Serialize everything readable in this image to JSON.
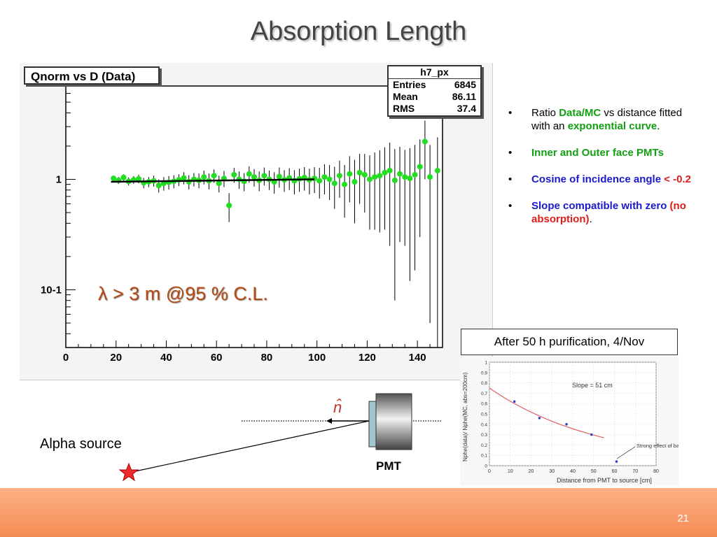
{
  "slide": {
    "title": "Absorption Length",
    "page_number": "21"
  },
  "main_plot": {
    "hist_title": "Qnorm vs D (Data)",
    "stats": {
      "name": "h7_px",
      "rows": [
        {
          "label": "Entries",
          "value": "6845"
        },
        {
          "label": "Mean",
          "value": "86.11"
        },
        {
          "label": "RMS",
          "value": "37.4"
        }
      ]
    },
    "annotation_symbol": "λ",
    "annotation_text": " > 3 m @95 % C.L.",
    "colors": {
      "points": "#22dd22",
      "fit": "#000000",
      "annotation": "#b84a12"
    }
  },
  "bullets": [
    {
      "parts": [
        {
          "t": "Ratio ",
          "c": ""
        },
        {
          "t": "Data/MC",
          "c": "green"
        },
        {
          "t": " vs distance fitted with an ",
          "c": ""
        },
        {
          "t": "exponential curve",
          "c": "green"
        },
        {
          "t": ".",
          "c": ""
        }
      ]
    },
    {
      "parts": [
        {
          "t": "Inner and Outer face PMTs",
          "c": "green"
        }
      ]
    },
    {
      "parts": [
        {
          "t": "Cosine of  incidence angle ",
          "c": "blue"
        },
        {
          "t": "< -0.2",
          "c": "red"
        }
      ]
    },
    {
      "parts": [
        {
          "t": "Slope compatible with zero ",
          "c": "blue"
        },
        {
          "t": "(no absorption)",
          "c": "red"
        },
        {
          "t": ".",
          "c": ""
        }
      ]
    }
  ],
  "inset": {
    "caption": "After 50 h purification, 4/Nov",
    "slope_label": "Slope = 51 cm",
    "note": "Strong effect of baseline",
    "xlabel": "Distance from PMT to source [cm]",
    "ylabel": "Nphe(data)/ Nphe(MC, abs=200cm)"
  },
  "diagram": {
    "alpha_label": "Alpha source",
    "pmt_label": "PMT",
    "normal_symbol": "n̂"
  },
  "chart_data": [
    {
      "type": "scatter",
      "title": "Qnorm vs D (Data)",
      "xlabel": "",
      "ylabel": "",
      "xlim": [
        0,
        150
      ],
      "ylim": [
        0.03,
        7
      ],
      "yscale": "log",
      "x_ticks": [
        0,
        20,
        40,
        60,
        80,
        100,
        120,
        140
      ],
      "y_ticks": [
        {
          "v": 1,
          "label": "1"
        },
        {
          "v": 0.1,
          "label": "10-1"
        }
      ],
      "x": [
        19,
        21,
        23,
        25,
        27,
        29,
        31,
        33,
        35,
        37,
        39,
        41,
        43,
        45,
        47,
        49,
        51,
        53,
        55,
        57,
        59,
        61,
        63,
        65,
        67,
        69,
        71,
        73,
        75,
        77,
        79,
        81,
        83,
        85,
        87,
        89,
        91,
        93,
        95,
        97,
        99,
        101,
        103,
        105,
        107,
        109,
        111,
        113,
        115,
        117,
        119,
        121,
        123,
        125,
        127,
        129,
        131,
        133,
        135,
        137,
        139,
        141,
        143,
        145,
        148
      ],
      "y": [
        1.02,
        0.98,
        1.04,
        0.96,
        0.99,
        1.01,
        0.93,
        0.95,
        0.97,
        0.88,
        0.92,
        0.94,
        0.96,
        0.99,
        1.03,
        0.95,
        1.0,
        0.98,
        1.05,
        0.97,
        1.08,
        0.92,
        1.02,
        0.58,
        1.1,
        1.0,
        0.96,
        1.12,
        1.05,
        0.98,
        1.08,
        1.0,
        0.95,
        1.06,
        0.99,
        1.03,
        0.97,
        1.01,
        1.04,
        0.99,
        1.02,
        0.97,
        1.05,
        1.0,
        0.92,
        1.08,
        0.9,
        1.12,
        0.95,
        1.15,
        1.1,
        1.0,
        1.05,
        1.08,
        1.15,
        1.2,
        0.98,
        1.12,
        1.05,
        1.02,
        1.1,
        1.3,
        2.2,
        1.05,
        1.2
      ],
      "yerr": [
        0.06,
        0.07,
        0.07,
        0.08,
        0.08,
        0.09,
        0.1,
        0.1,
        0.11,
        0.12,
        0.13,
        0.13,
        0.13,
        0.12,
        0.13,
        0.14,
        0.14,
        0.15,
        0.15,
        0.16,
        0.15,
        0.16,
        0.17,
        0.17,
        0.17,
        0.18,
        0.18,
        0.19,
        0.19,
        0.2,
        0.2,
        0.2,
        0.21,
        0.22,
        0.22,
        0.23,
        0.24,
        0.24,
        0.25,
        0.26,
        0.27,
        0.3,
        0.32,
        0.35,
        0.38,
        0.4,
        0.45,
        0.5,
        0.55,
        0.55,
        0.6,
        0.65,
        0.7,
        0.75,
        0.8,
        0.95,
        0.9,
        0.85,
        0.8,
        0.9,
        0.95,
        1.0,
        1.2,
        1.0,
        1.2
      ],
      "fit": {
        "x": [
          18,
          99
        ],
        "y": [
          0.95,
          1.0
        ]
      }
    },
    {
      "type": "scatter",
      "title": "",
      "xlabel": "Distance from PMT to source [cm]",
      "ylabel": "Nphe(data)/ Nphe(MC, abs=200cm)",
      "xlim": [
        0,
        80
      ],
      "ylim": [
        0,
        1
      ],
      "x_ticks": [
        0,
        10,
        20,
        30,
        40,
        50,
        60,
        70,
        80
      ],
      "y_ticks": [
        0,
        0.1,
        0.2,
        0.3,
        0.4,
        0.5,
        0.6,
        0.7,
        0.8,
        0.9,
        1
      ],
      "x": [
        12,
        24,
        37,
        49,
        61
      ],
      "y": [
        0.62,
        0.46,
        0.4,
        0.3,
        0.04
      ],
      "fit_curve": {
        "x": [
          0,
          55
        ],
        "y": [
          0.75,
          0.27
        ]
      }
    }
  ]
}
